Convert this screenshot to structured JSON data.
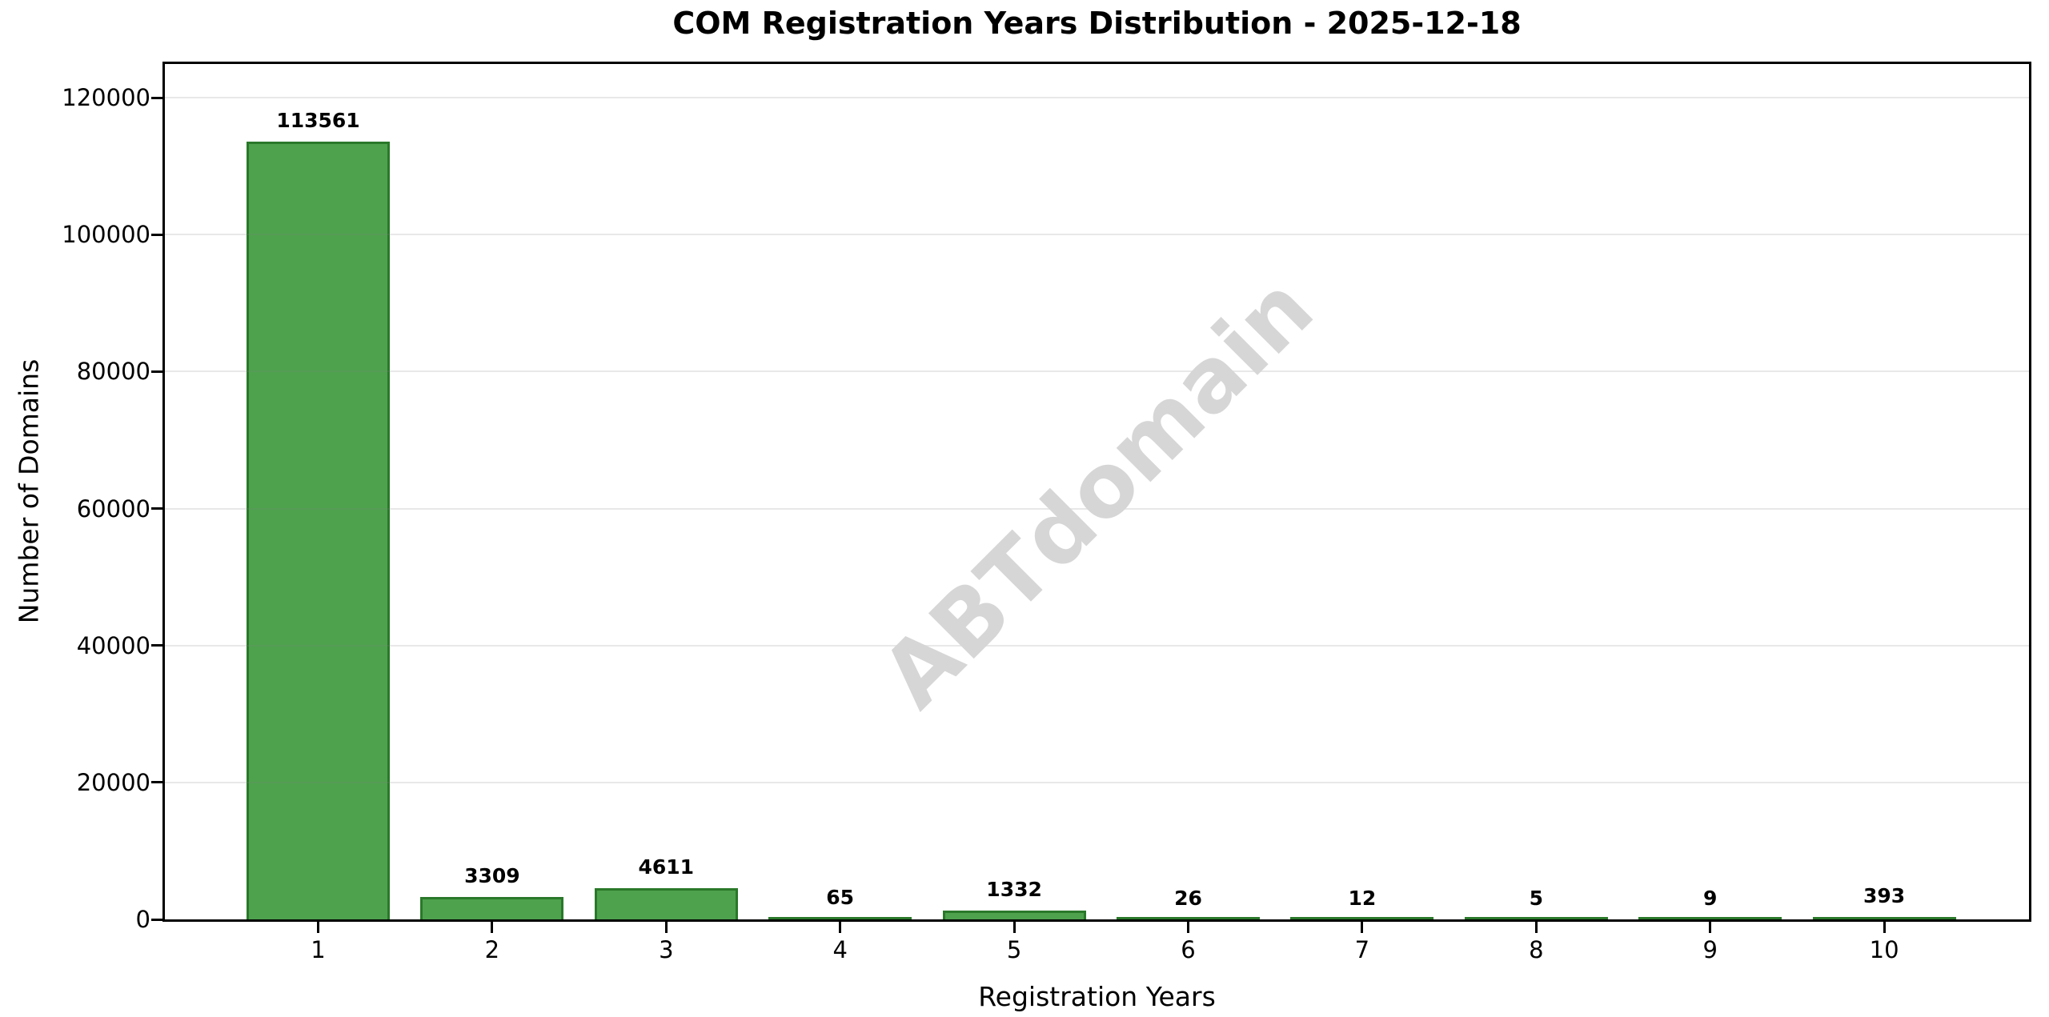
{
  "chart_data": {
    "type": "bar",
    "title": "COM Registration Years Distribution - 2025-12-18",
    "xlabel": "Registration Years",
    "ylabel": "Number of Domains",
    "categories": [
      "1",
      "2",
      "3",
      "4",
      "5",
      "6",
      "7",
      "8",
      "9",
      "10"
    ],
    "values": [
      113561,
      3309,
      4611,
      65,
      1332,
      26,
      12,
      5,
      9,
      393
    ],
    "bar_value_labels": [
      "113561",
      "3309",
      "4611",
      "65",
      "1332",
      "26",
      "12",
      "5",
      "9",
      "393"
    ],
    "ylim": [
      0,
      124917
    ],
    "yticks": [
      0,
      20000,
      40000,
      60000,
      80000,
      100000,
      120000
    ],
    "ytick_labels": [
      "0",
      "20000",
      "40000",
      "60000",
      "80000",
      "100000",
      "120000"
    ],
    "grid": "horizontal",
    "legend": "none",
    "watermark": {
      "text": "ABTdomain",
      "rotation_deg": -45
    },
    "colors": {
      "bar_fill": "#4EA24E",
      "bar_edge": "#2A782A",
      "grid_line_rgba": "rgba(128,128,128,0.18)",
      "watermark_text": "#D6D6D6",
      "axis_and_text": "#000000",
      "background": "#FFFFFF"
    }
  }
}
